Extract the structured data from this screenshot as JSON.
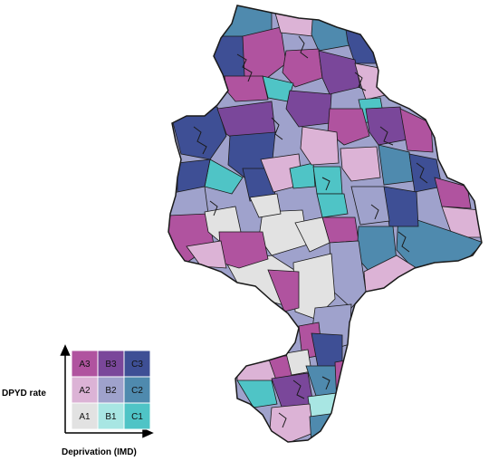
{
  "palette": {
    "A1": "#e2e2e2",
    "A2": "#dcb3d6",
    "A3": "#b0539f",
    "B1": "#a8e6e3",
    "B2": "#9fa2cc",
    "B3": "#7a479a",
    "C1": "#4fc4c6",
    "C2": "#4f8aae",
    "C3": "#3e4f95",
    "boundary": "#1a1a1a"
  },
  "legend": {
    "grid": [
      [
        "A3",
        "B3",
        "C3"
      ],
      [
        "A2",
        "B2",
        "C2"
      ],
      [
        "A1",
        "B1",
        "C1"
      ]
    ],
    "y_axis_label": "DPYD rate",
    "x_axis_label": "Deprivation (IMD)"
  }
}
